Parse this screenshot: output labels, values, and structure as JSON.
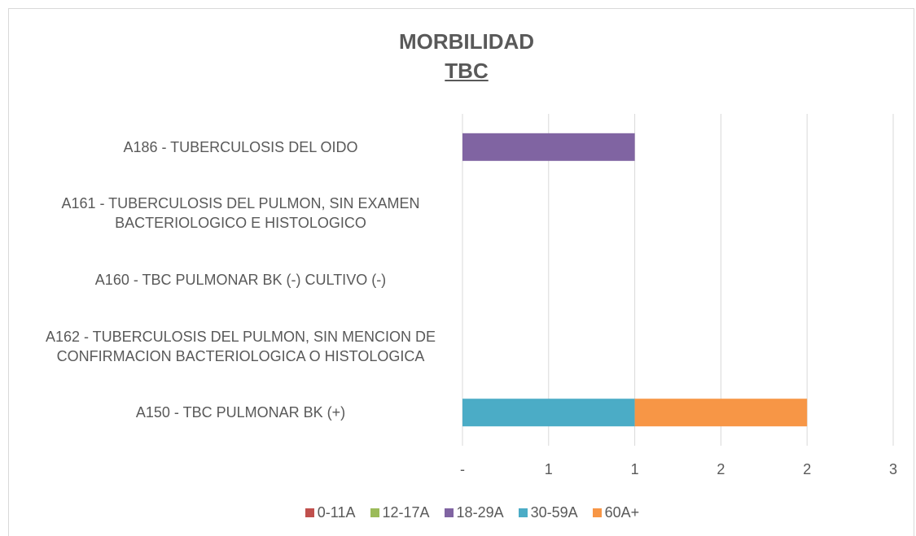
{
  "chart_data": {
    "type": "stacked-barh",
    "title": "MORBILIDAD",
    "subtitle": "TBC",
    "categories": [
      "A186 - TUBERCULOSIS DEL OIDO",
      "A161 - TUBERCULOSIS DEL PULMON, SIN EXAMEN BACTERIOLOGICO E HISTOLOGICO",
      "A160 - TBC PULMONAR BK (-) CULTIVO (-)",
      "A162 - TUBERCULOSIS DEL PULMON, SIN MENCION DE CONFIRMACION BACTERIOLOGICA O HISTOLOGICA",
      "A150 - TBC PULMONAR  BK (+)"
    ],
    "series": [
      {
        "name": "0-11A",
        "color": "#c0504d",
        "values": [
          0,
          0,
          0,
          0,
          0
        ]
      },
      {
        "name": "12-17A",
        "color": "#9bbb59",
        "values": [
          0,
          0,
          0,
          0,
          0
        ]
      },
      {
        "name": "18-29A",
        "color": "#8064a2",
        "values": [
          1,
          0,
          0,
          0,
          0
        ]
      },
      {
        "name": "30-59A",
        "color": "#4bacc6",
        "values": [
          0,
          0,
          0,
          0,
          1
        ]
      },
      {
        "name": "60A+",
        "color": "#f79646",
        "values": [
          0,
          0,
          0,
          0,
          1
        ]
      }
    ],
    "xlim": [
      0,
      2.5
    ],
    "xticks": [
      {
        "value": 0,
        "label": "-"
      },
      {
        "value": 0.5,
        "label": "1"
      },
      {
        "value": 1,
        "label": "1"
      },
      {
        "value": 1.5,
        "label": "2"
      },
      {
        "value": 2,
        "label": "2"
      },
      {
        "value": 2.5,
        "label": "3"
      }
    ],
    "grid": true,
    "legend": "bottom"
  }
}
